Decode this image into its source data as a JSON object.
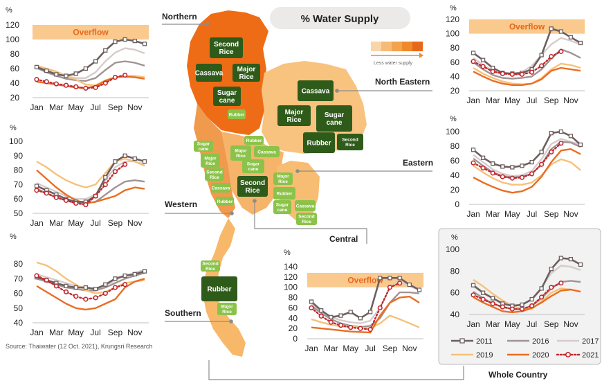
{
  "title": "% Water Supply",
  "legend_gradient_label": "Less water supply",
  "gradient_colors": [
    "#f9d6a8",
    "#f6bb78",
    "#f3a24e",
    "#ef8a2c",
    "#e8681a"
  ],
  "source": "Source: Thaiwater (12 Oct. 2021), Krungsri Research",
  "overflow_label": "Overflow",
  "colors": {
    "2011": "#6d5f5f",
    "2016": "#a09494",
    "2017": "#d7cbcb",
    "2019": "#f6c17a",
    "2020": "#ea6d22",
    "2021": "#c0282e",
    "overflow_band": "#f9c98e",
    "map_north": "#ef6c16",
    "map_northeast": "#f8c37f",
    "map_central": "#f6b46a",
    "map_west": "#f09a4e",
    "map_south": "#f7b869",
    "crop_dark": "#2f5b1a",
    "crop_light": "#8bc34a"
  },
  "regions": {
    "northern": "Northern",
    "north_eastern": "North Eastern",
    "eastern": "Eastern",
    "western": "Western",
    "central": "Central",
    "southern": "Southern",
    "whole_country": "Whole Country"
  },
  "crops": [
    {
      "text": "Second\nRice",
      "style": "dark"
    },
    {
      "text": "Cassava",
      "style": "dark"
    },
    {
      "text": "Major\nRice",
      "style": "dark"
    },
    {
      "text": "Sugar\ncane",
      "style": "dark"
    },
    {
      "text": "Rubber",
      "style": "light"
    },
    {
      "text": "Cassava",
      "style": "dark"
    },
    {
      "text": "Major\nRice",
      "style": "dark"
    },
    {
      "text": "Sugar\ncane",
      "style": "dark"
    },
    {
      "text": "Rubber",
      "style": "dark"
    },
    {
      "text": "Second\nRice",
      "style": "dark"
    },
    {
      "text": "Rubber",
      "style": "light"
    },
    {
      "text": "Major\nRice",
      "style": "light"
    },
    {
      "text": "Cassava",
      "style": "light"
    },
    {
      "text": "Sugar\ncane",
      "style": "light"
    },
    {
      "text": "Second\nRice",
      "style": "dark"
    },
    {
      "text": "Sugar\ncane",
      "style": "light"
    },
    {
      "text": "Major\nRice",
      "style": "light"
    },
    {
      "text": "Second\nRice",
      "style": "light"
    },
    {
      "text": "Cassava",
      "style": "light"
    },
    {
      "text": "Rubber",
      "style": "light"
    },
    {
      "text": "Major\nRice",
      "style": "light"
    },
    {
      "text": "Rubber",
      "style": "light"
    },
    {
      "text": "Sugar\ncane",
      "style": "light"
    },
    {
      "text": "Cassava",
      "style": "light"
    },
    {
      "text": "Second\nRice",
      "style": "light"
    },
    {
      "text": "Second\nRice",
      "style": "light"
    },
    {
      "text": "Rubber",
      "style": "dark"
    },
    {
      "text": "Major\nRice",
      "style": "light"
    }
  ],
  "chart_data": [
    {
      "region": "Northern",
      "type": "line",
      "ylabel": "%",
      "ylim": [
        20,
        120
      ],
      "yticks": [
        20,
        40,
        60,
        80,
        100,
        120
      ],
      "categories": [
        "Jan",
        "Feb",
        "Mar",
        "Apr",
        "May",
        "Jun",
        "Jul",
        "Aug",
        "Sep",
        "Oct",
        "Nov",
        "Dec"
      ],
      "xtick_labels": [
        "Jan",
        "Mar",
        "May",
        "Jul",
        "Sep",
        "Nov"
      ],
      "overflow": true,
      "series": [
        {
          "name": "2011",
          "values": [
            62,
            57,
            52,
            50,
            53,
            60,
            70,
            85,
            97,
            100,
            98,
            94
          ]
        },
        {
          "name": "2016",
          "values": [
            61,
            55,
            50,
            46,
            44,
            43,
            47,
            58,
            68,
            70,
            68,
            64
          ]
        },
        {
          "name": "2017",
          "values": [
            63,
            58,
            53,
            49,
            47,
            47,
            55,
            70,
            82,
            88,
            86,
            81
          ]
        },
        {
          "name": "2019",
          "values": [
            64,
            60,
            56,
            50,
            45,
            38,
            37,
            44,
            48,
            50,
            50,
            48
          ]
        },
        {
          "name": "2020",
          "values": [
            42,
            40,
            38,
            36,
            34,
            33,
            36,
            43,
            48,
            49,
            48,
            46
          ]
        },
        {
          "name": "2021",
          "values": [
            45,
            42,
            39,
            37,
            35,
            33,
            34,
            40,
            48,
            51,
            null,
            null
          ]
        }
      ]
    },
    {
      "region": "Western",
      "type": "line",
      "ylabel": "%",
      "ylim": [
        50,
        100
      ],
      "yticks": [
        50,
        60,
        70,
        80,
        90,
        100
      ],
      "categories": [
        "Jan",
        "Feb",
        "Mar",
        "Apr",
        "May",
        "Jun",
        "Jul",
        "Aug",
        "Sep",
        "Oct",
        "Nov",
        "Dec"
      ],
      "xtick_labels": [
        "Jan",
        "Mar",
        "May",
        "Jul",
        "Sep",
        "Nov"
      ],
      "overflow": false,
      "series": [
        {
          "name": "2011",
          "values": [
            69,
            66,
            63,
            60,
            58,
            58,
            62,
            75,
            86,
            90,
            88,
            86
          ]
        },
        {
          "name": "2016",
          "values": [
            67,
            64,
            61,
            59,
            57,
            57,
            58,
            63,
            68,
            72,
            73,
            72
          ]
        },
        {
          "name": "2017",
          "values": [
            71,
            68,
            65,
            62,
            60,
            60,
            63,
            73,
            82,
            86,
            86,
            84
          ]
        },
        {
          "name": "2019",
          "values": [
            86,
            82,
            77,
            73,
            70,
            68,
            70,
            78,
            86,
            88,
            86,
            83
          ]
        },
        {
          "name": "2020",
          "values": [
            80,
            74,
            68,
            63,
            59,
            57,
            58,
            60,
            62,
            66,
            68,
            67
          ]
        },
        {
          "name": "2021",
          "values": [
            66,
            64,
            61,
            59,
            57,
            56,
            62,
            70,
            79,
            84,
            null,
            null
          ]
        }
      ]
    },
    {
      "region": "Southern",
      "type": "line",
      "ylabel": "%",
      "ylim": [
        40,
        80
      ],
      "yticks": [
        40,
        50,
        60,
        70,
        80
      ],
      "categories": [
        "Jan",
        "Feb",
        "Mar",
        "Apr",
        "May",
        "Jun",
        "Jul",
        "Aug",
        "Sep",
        "Oct",
        "Nov",
        "Dec"
      ],
      "xtick_labels": [
        "Jan",
        "Mar",
        "May",
        "Jul",
        "Sep",
        "Nov"
      ],
      "overflow": false,
      "series": [
        {
          "name": "2011",
          "values": [
            71,
            69,
            67,
            65,
            64,
            64,
            63,
            66,
            70,
            72,
            73,
            75
          ]
        },
        {
          "name": "2016",
          "values": [
            70,
            68,
            66,
            64,
            63,
            62,
            62,
            64,
            67,
            70,
            72,
            74
          ]
        },
        {
          "name": "2017",
          "values": [
            73,
            71,
            69,
            67,
            65,
            64,
            62,
            65,
            69,
            72,
            74,
            76
          ]
        },
        {
          "name": "2019",
          "values": [
            81,
            79,
            75,
            70,
            66,
            62,
            60,
            61,
            64,
            67,
            68,
            69
          ]
        },
        {
          "name": "2020",
          "values": [
            65,
            61,
            57,
            53,
            50,
            49,
            50,
            53,
            56,
            64,
            68,
            70
          ]
        },
        {
          "name": "2021",
          "values": [
            72,
            69,
            65,
            61,
            58,
            56,
            57,
            60,
            64,
            66,
            null,
            null
          ]
        }
      ]
    },
    {
      "region": "North Eastern",
      "type": "line",
      "ylabel": "%",
      "ylim": [
        20,
        120
      ],
      "yticks": [
        20,
        40,
        60,
        80,
        100,
        120
      ],
      "categories": [
        "Jan",
        "Feb",
        "Mar",
        "Apr",
        "May",
        "Jun",
        "Jul",
        "Aug",
        "Sep",
        "Oct",
        "Nov",
        "Dec"
      ],
      "xtick_labels": [
        "Jan",
        "Mar",
        "May",
        "Jul",
        "Sep",
        "Nov"
      ],
      "overflow": true,
      "series": [
        {
          "name": "2011",
          "values": [
            73,
            63,
            52,
            45,
            44,
            45,
            50,
            70,
            107,
            103,
            95,
            87
          ]
        },
        {
          "name": "2016",
          "values": [
            60,
            50,
            42,
            38,
            37,
            38,
            40,
            50,
            65,
            78,
            73,
            66
          ]
        },
        {
          "name": "2017",
          "values": [
            66,
            56,
            48,
            44,
            44,
            46,
            55,
            70,
            85,
            94,
            90,
            85
          ]
        },
        {
          "name": "2019",
          "values": [
            52,
            44,
            38,
            33,
            30,
            29,
            30,
            38,
            50,
            58,
            56,
            52
          ]
        },
        {
          "name": "2020",
          "values": [
            47,
            40,
            34,
            30,
            28,
            28,
            30,
            36,
            48,
            52,
            50,
            48
          ]
        },
        {
          "name": "2021",
          "values": [
            61,
            54,
            47,
            44,
            43,
            43,
            46,
            55,
            68,
            75,
            null,
            null
          ]
        }
      ]
    },
    {
      "region": "Eastern",
      "type": "line",
      "ylabel": "%",
      "ylim": [
        0,
        100
      ],
      "yticks": [
        0,
        20,
        40,
        60,
        80,
        100
      ],
      "categories": [
        "Jan",
        "Feb",
        "Mar",
        "Apr",
        "May",
        "Jun",
        "Jul",
        "Aug",
        "Sep",
        "Oct",
        "Nov",
        "Dec"
      ],
      "xtick_labels": [
        "Jan",
        "Mar",
        "May",
        "Jul",
        "Sep",
        "Nov"
      ],
      "overflow": false,
      "series": [
        {
          "name": "2011",
          "values": [
            75,
            64,
            56,
            52,
            51,
            53,
            58,
            72,
            98,
            100,
            94,
            82
          ]
        },
        {
          "name": "2016",
          "values": [
            63,
            53,
            44,
            39,
            37,
            38,
            42,
            55,
            76,
            86,
            85,
            79
          ]
        },
        {
          "name": "2017",
          "values": [
            68,
            58,
            48,
            42,
            39,
            40,
            46,
            62,
            83,
            90,
            86,
            82
          ]
        },
        {
          "name": "2019",
          "values": [
            53,
            44,
            36,
            30,
            27,
            27,
            30,
            40,
            55,
            62,
            58,
            47
          ]
        },
        {
          "name": "2020",
          "values": [
            37,
            30,
            24,
            19,
            16,
            18,
            24,
            38,
            58,
            74,
            76,
            69
          ]
        },
        {
          "name": "2021",
          "values": [
            57,
            50,
            43,
            38,
            36,
            37,
            42,
            55,
            72,
            84,
            null,
            null
          ]
        }
      ]
    },
    {
      "region": "Central",
      "type": "line",
      "ylabel": "%",
      "ylim": [
        0,
        140
      ],
      "yticks": [
        0,
        20,
        40,
        60,
        80,
        100,
        120,
        140
      ],
      "categories": [
        "Jan",
        "Feb",
        "Mar",
        "Apr",
        "May",
        "Jun",
        "Jul",
        "Aug",
        "Sep",
        "Oct",
        "Nov",
        "Dec"
      ],
      "xtick_labels": [
        "Jan",
        "Mar",
        "May",
        "Jul",
        "Sep",
        "Nov"
      ],
      "overflow": true,
      "series": [
        {
          "name": "2011",
          "values": [
            72,
            55,
            42,
            45,
            52,
            40,
            52,
            118,
            118,
            118,
            105,
            95
          ]
        },
        {
          "name": "2016",
          "values": [
            64,
            50,
            38,
            30,
            25,
            23,
            25,
            40,
            70,
            90,
            90,
            88
          ]
        },
        {
          "name": "2017",
          "values": [
            68,
            54,
            42,
            36,
            32,
            30,
            35,
            60,
            100,
            110,
            102,
            95
          ]
        },
        {
          "name": "2019",
          "values": [
            38,
            32,
            27,
            24,
            23,
            22,
            20,
            30,
            45,
            38,
            30,
            22
          ]
        },
        {
          "name": "2020",
          "values": [
            22,
            20,
            18,
            16,
            14,
            13,
            12,
            45,
            70,
            80,
            82,
            70
          ]
        },
        {
          "name": "2021",
          "values": [
            60,
            44,
            32,
            26,
            22,
            20,
            18,
            60,
            100,
            108,
            null,
            null
          ]
        }
      ]
    },
    {
      "region": "Whole Country",
      "type": "line",
      "ylabel": "%",
      "ylim": [
        40,
        100
      ],
      "yticks": [
        40,
        60,
        80,
        100
      ],
      "categories": [
        "Jan",
        "Feb",
        "Mar",
        "Apr",
        "May",
        "Jun",
        "Jul",
        "Aug",
        "Sep",
        "Oct",
        "Nov",
        "Dec"
      ],
      "xtick_labels": [
        "Jan",
        "Mar",
        "May",
        "Jul",
        "Sep",
        "Nov"
      ],
      "overflow": false,
      "legend": [
        "2011",
        "2016",
        "2017",
        "2019",
        "2020",
        "2021"
      ],
      "series": [
        {
          "name": "2011",
          "values": [
            67,
            60,
            55,
            50,
            48,
            49,
            54,
            64,
            82,
            92,
            91,
            86
          ]
        },
        {
          "name": "2016",
          "values": [
            61,
            55,
            50,
            47,
            45,
            45,
            48,
            55,
            64,
            70,
            71,
            70
          ]
        },
        {
          "name": "2017",
          "values": [
            66,
            60,
            55,
            51,
            49,
            49,
            54,
            65,
            78,
            85,
            84,
            81
          ]
        },
        {
          "name": "2019",
          "values": [
            72,
            66,
            59,
            53,
            48,
            45,
            45,
            52,
            60,
            64,
            63,
            61
          ]
        },
        {
          "name": "2020",
          "values": [
            56,
            51,
            47,
            43,
            42,
            43,
            46,
            51,
            57,
            62,
            63,
            61
          ]
        },
        {
          "name": "2021",
          "values": [
            58,
            54,
            50,
            47,
            45,
            45,
            48,
            56,
            65,
            69,
            null,
            null
          ]
        }
      ]
    }
  ]
}
